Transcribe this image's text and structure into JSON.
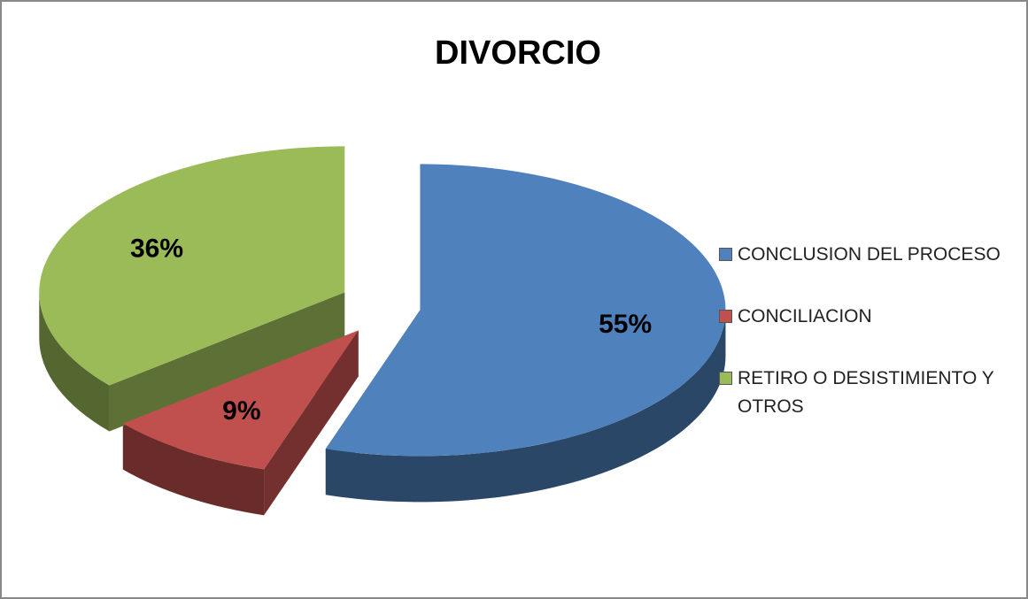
{
  "chart_data": {
    "type": "pie3d",
    "title": "DIVORCIO",
    "categories": [
      "CONCLUSION DEL PROCESO",
      "CONCILIACION",
      "RETIRO O DESISTIMIENTO Y OTROS"
    ],
    "values": [
      55,
      9,
      36
    ],
    "value_labels": [
      "55%",
      "9%",
      "36%"
    ],
    "colors": [
      "#4f81bd",
      "#c0504d",
      "#9bbb59"
    ],
    "legend": "right"
  }
}
